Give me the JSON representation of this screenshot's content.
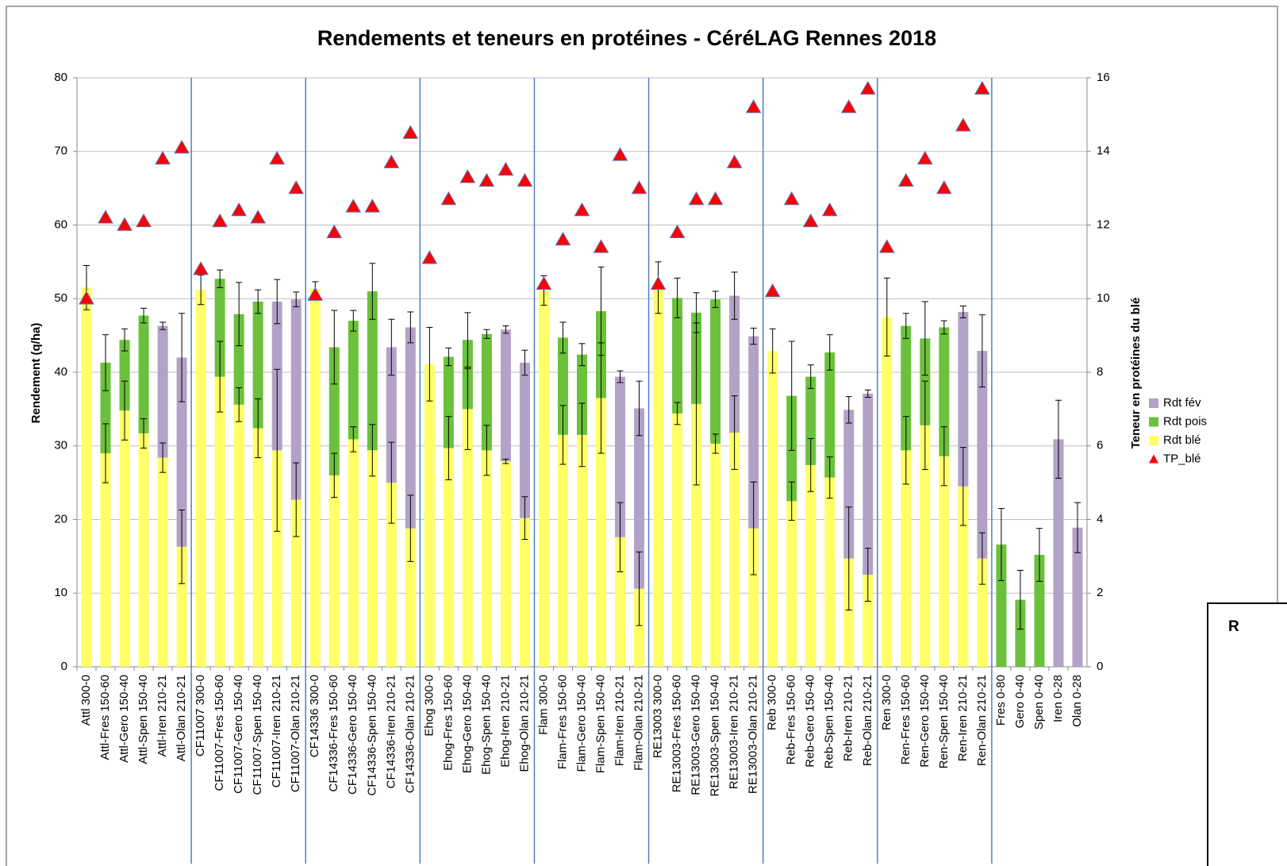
{
  "chart_data": {
    "type": "stacked-bar",
    "title": "Rendements et teneurs en protéines - CéréLAG Rennes 2018",
    "y_label": "Rendement (q/ha)",
    "y2_label": "Teneur en protéines du blé",
    "note": "R",
    "categories": [
      "Attl 300-0",
      "Attl-Fres 150-60",
      "Attl-Gero 150-40",
      "Attl-Spen 150-40",
      "Attl-Iren 210-21",
      "Attl-Olan 210-21",
      "CF11007 300-0",
      "CF11007-Fres 150-60",
      "CF11007-Gero 150-40",
      "CF11007-Spen 150-40",
      "CF11007-Iren 210-21",
      "CF11007-Olan 210-21",
      "CF14336 300-0",
      "CF14336-Fres 150-60",
      "CF14336-Gero 150-40",
      "CF14336-Spen 150-40",
      "CF14336-Iren 210-21",
      "CF14336-Olan 210-21",
      "Ehog 300-0",
      "Ehog-Fres 150-60",
      "Ehog-Gero 150-40",
      "Ehog-Spen 150-40",
      "Ehog-Iren 210-21",
      "Ehog-Olan 210-21",
      "Flam 300-0",
      "Flam-Fres 150-60",
      "Flam-Gero 150-40",
      "Flam-Spen 150-40",
      "Flam-Iren 210-21",
      "Flam-Olan 210-21",
      "RE13003 300-0",
      "RE13003-Fres 150-60",
      "RE13003-Gero 150-40",
      "RE13003-Spen 150-40",
      "RE13003-Iren 210-21",
      "RE13003-Olan 210-21",
      "Reb 300-0",
      "Reb-Fres 150-60",
      "Reb-Gero 150-40",
      "Reb-Spen 150-40",
      "Reb-Iren 210-21",
      "Reb-Olan 210-21",
      "Ren 300-0",
      "Ren-Fres 150-60",
      "Ren-Gero 150-40",
      "Ren-Spen 150-40",
      "Ren-Iren 210-21",
      "Ren-Olan 210-21",
      "Fres 0-80",
      "Gero 0-40",
      "Spen 0-40",
      "Iren 0-28",
      "Olan 0-28"
    ],
    "series": [
      {
        "name": "Rdt blé",
        "color": "#ffff66",
        "values": [
          51.5,
          29,
          34.8,
          31.7,
          28.4,
          16.3,
          51.2,
          39.4,
          35.6,
          32.4,
          29.4,
          22.7,
          51.3,
          26,
          30.9,
          29.4,
          25,
          18.8,
          41.1,
          29.7,
          35,
          29.4,
          27.9,
          20.2,
          51.1,
          31.5,
          31.5,
          36.5,
          17.6,
          10.6,
          51.5,
          34.4,
          35.7,
          30.3,
          31.8,
          18.8,
          42.9,
          22.5,
          27.4,
          25.7,
          14.7,
          12.5,
          47.5,
          29.4,
          32.8,
          28.6,
          24.5,
          14.7,
          null,
          null,
          null,
          null,
          null
        ],
        "errors": [
          3,
          4,
          4,
          2,
          2,
          5,
          2,
          4.8,
          2.3,
          4,
          11,
          5,
          1,
          3,
          1.7,
          3.5,
          5.5,
          4.5,
          5,
          4.3,
          5.5,
          3.4,
          0.3,
          2.9,
          2,
          4,
          4.3,
          7.5,
          4.7,
          5,
          3.5,
          1.5,
          11,
          1.3,
          5,
          6.3,
          3,
          2.6,
          3.6,
          2.8,
          7,
          3.6,
          5.3,
          4.6,
          6,
          4,
          5.3,
          3.5,
          null,
          null,
          null,
          null,
          null
        ]
      },
      {
        "name": "Rdt pois",
        "color": "#6cc13c",
        "values": [
          null,
          12.3,
          9.6,
          16,
          null,
          null,
          null,
          13.3,
          12.3,
          17.2,
          null,
          null,
          null,
          17.4,
          16.1,
          21.6,
          null,
          null,
          null,
          12.4,
          9.4,
          15.8,
          null,
          null,
          null,
          13.2,
          10.9,
          11.8,
          null,
          null,
          null,
          15.7,
          12.4,
          19.6,
          null,
          null,
          null,
          14.3,
          12,
          17,
          null,
          null,
          null,
          16.9,
          11.8,
          17.5,
          null,
          null,
          16.6,
          9.1,
          15.2,
          null,
          null
        ],
        "errors": [
          null,
          3.8,
          1.5,
          1,
          null,
          null,
          null,
          1.2,
          4.3,
          1.6,
          null,
          null,
          null,
          5,
          1.4,
          3.8,
          null,
          null,
          null,
          1.2,
          3.7,
          0.6,
          null,
          null,
          null,
          2.1,
          1.5,
          6,
          null,
          null,
          null,
          2.7,
          2.7,
          1.1,
          null,
          null,
          null,
          7.4,
          1.6,
          2.4,
          null,
          null,
          null,
          1.7,
          5,
          0.9,
          null,
          null,
          4.9,
          4,
          3.6,
          null,
          null
        ]
      },
      {
        "name": "Rdt fév",
        "color": "#b3a2c7",
        "values": [
          null,
          null,
          null,
          null,
          17.9,
          25.7,
          null,
          null,
          null,
          null,
          20.2,
          27.2,
          null,
          null,
          null,
          null,
          18.4,
          27.3,
          null,
          null,
          null,
          null,
          17.9,
          21.1,
          null,
          null,
          null,
          null,
          21.8,
          24.5,
          null,
          null,
          null,
          null,
          18.6,
          26.1,
          null,
          null,
          null,
          null,
          20.2,
          24.6,
          null,
          null,
          null,
          null,
          23.7,
          28.2,
          null,
          null,
          null,
          30.9,
          18.9
        ],
        "errors": [
          null,
          null,
          null,
          null,
          0.5,
          6,
          null,
          null,
          null,
          null,
          3,
          1,
          null,
          null,
          null,
          null,
          3.8,
          2.1,
          null,
          null,
          null,
          null,
          0.5,
          1.7,
          null,
          null,
          null,
          null,
          0.8,
          3.7,
          null,
          null,
          null,
          null,
          3.2,
          1.1,
          null,
          null,
          null,
          null,
          1.8,
          0.5,
          null,
          null,
          null,
          null,
          0.8,
          4.9,
          null,
          null,
          null,
          5.3,
          3.4
        ]
      },
      {
        "name": "TP_blé",
        "color": "#ff0000",
        "axis": "y2",
        "marker": "triangle",
        "values": [
          10.0,
          12.2,
          12.0,
          12.1,
          13.8,
          14.1,
          10.8,
          12.1,
          12.4,
          12.2,
          13.8,
          13.0,
          10.1,
          11.8,
          12.5,
          12.5,
          13.7,
          14.5,
          11.1,
          12.7,
          13.3,
          13.2,
          13.5,
          13.2,
          10.4,
          11.6,
          12.4,
          11.4,
          13.9,
          13.0,
          10.4,
          11.8,
          12.7,
          12.7,
          13.7,
          15.2,
          10.2,
          12.7,
          12.1,
          12.4,
          15.2,
          15.7,
          11.4,
          13.2,
          13.8,
          13.0,
          14.7,
          15.7,
          null,
          null,
          null,
          null,
          null
        ]
      }
    ],
    "ylim": [
      0,
      80
    ],
    "yticks": [
      0,
      10,
      20,
      30,
      40,
      50,
      60,
      70,
      80
    ],
    "y2lim": [
      0,
      16
    ],
    "y2ticks": [
      0,
      2,
      4,
      6,
      8,
      10,
      12,
      14,
      16
    ],
    "grid": true,
    "legend": "right"
  }
}
